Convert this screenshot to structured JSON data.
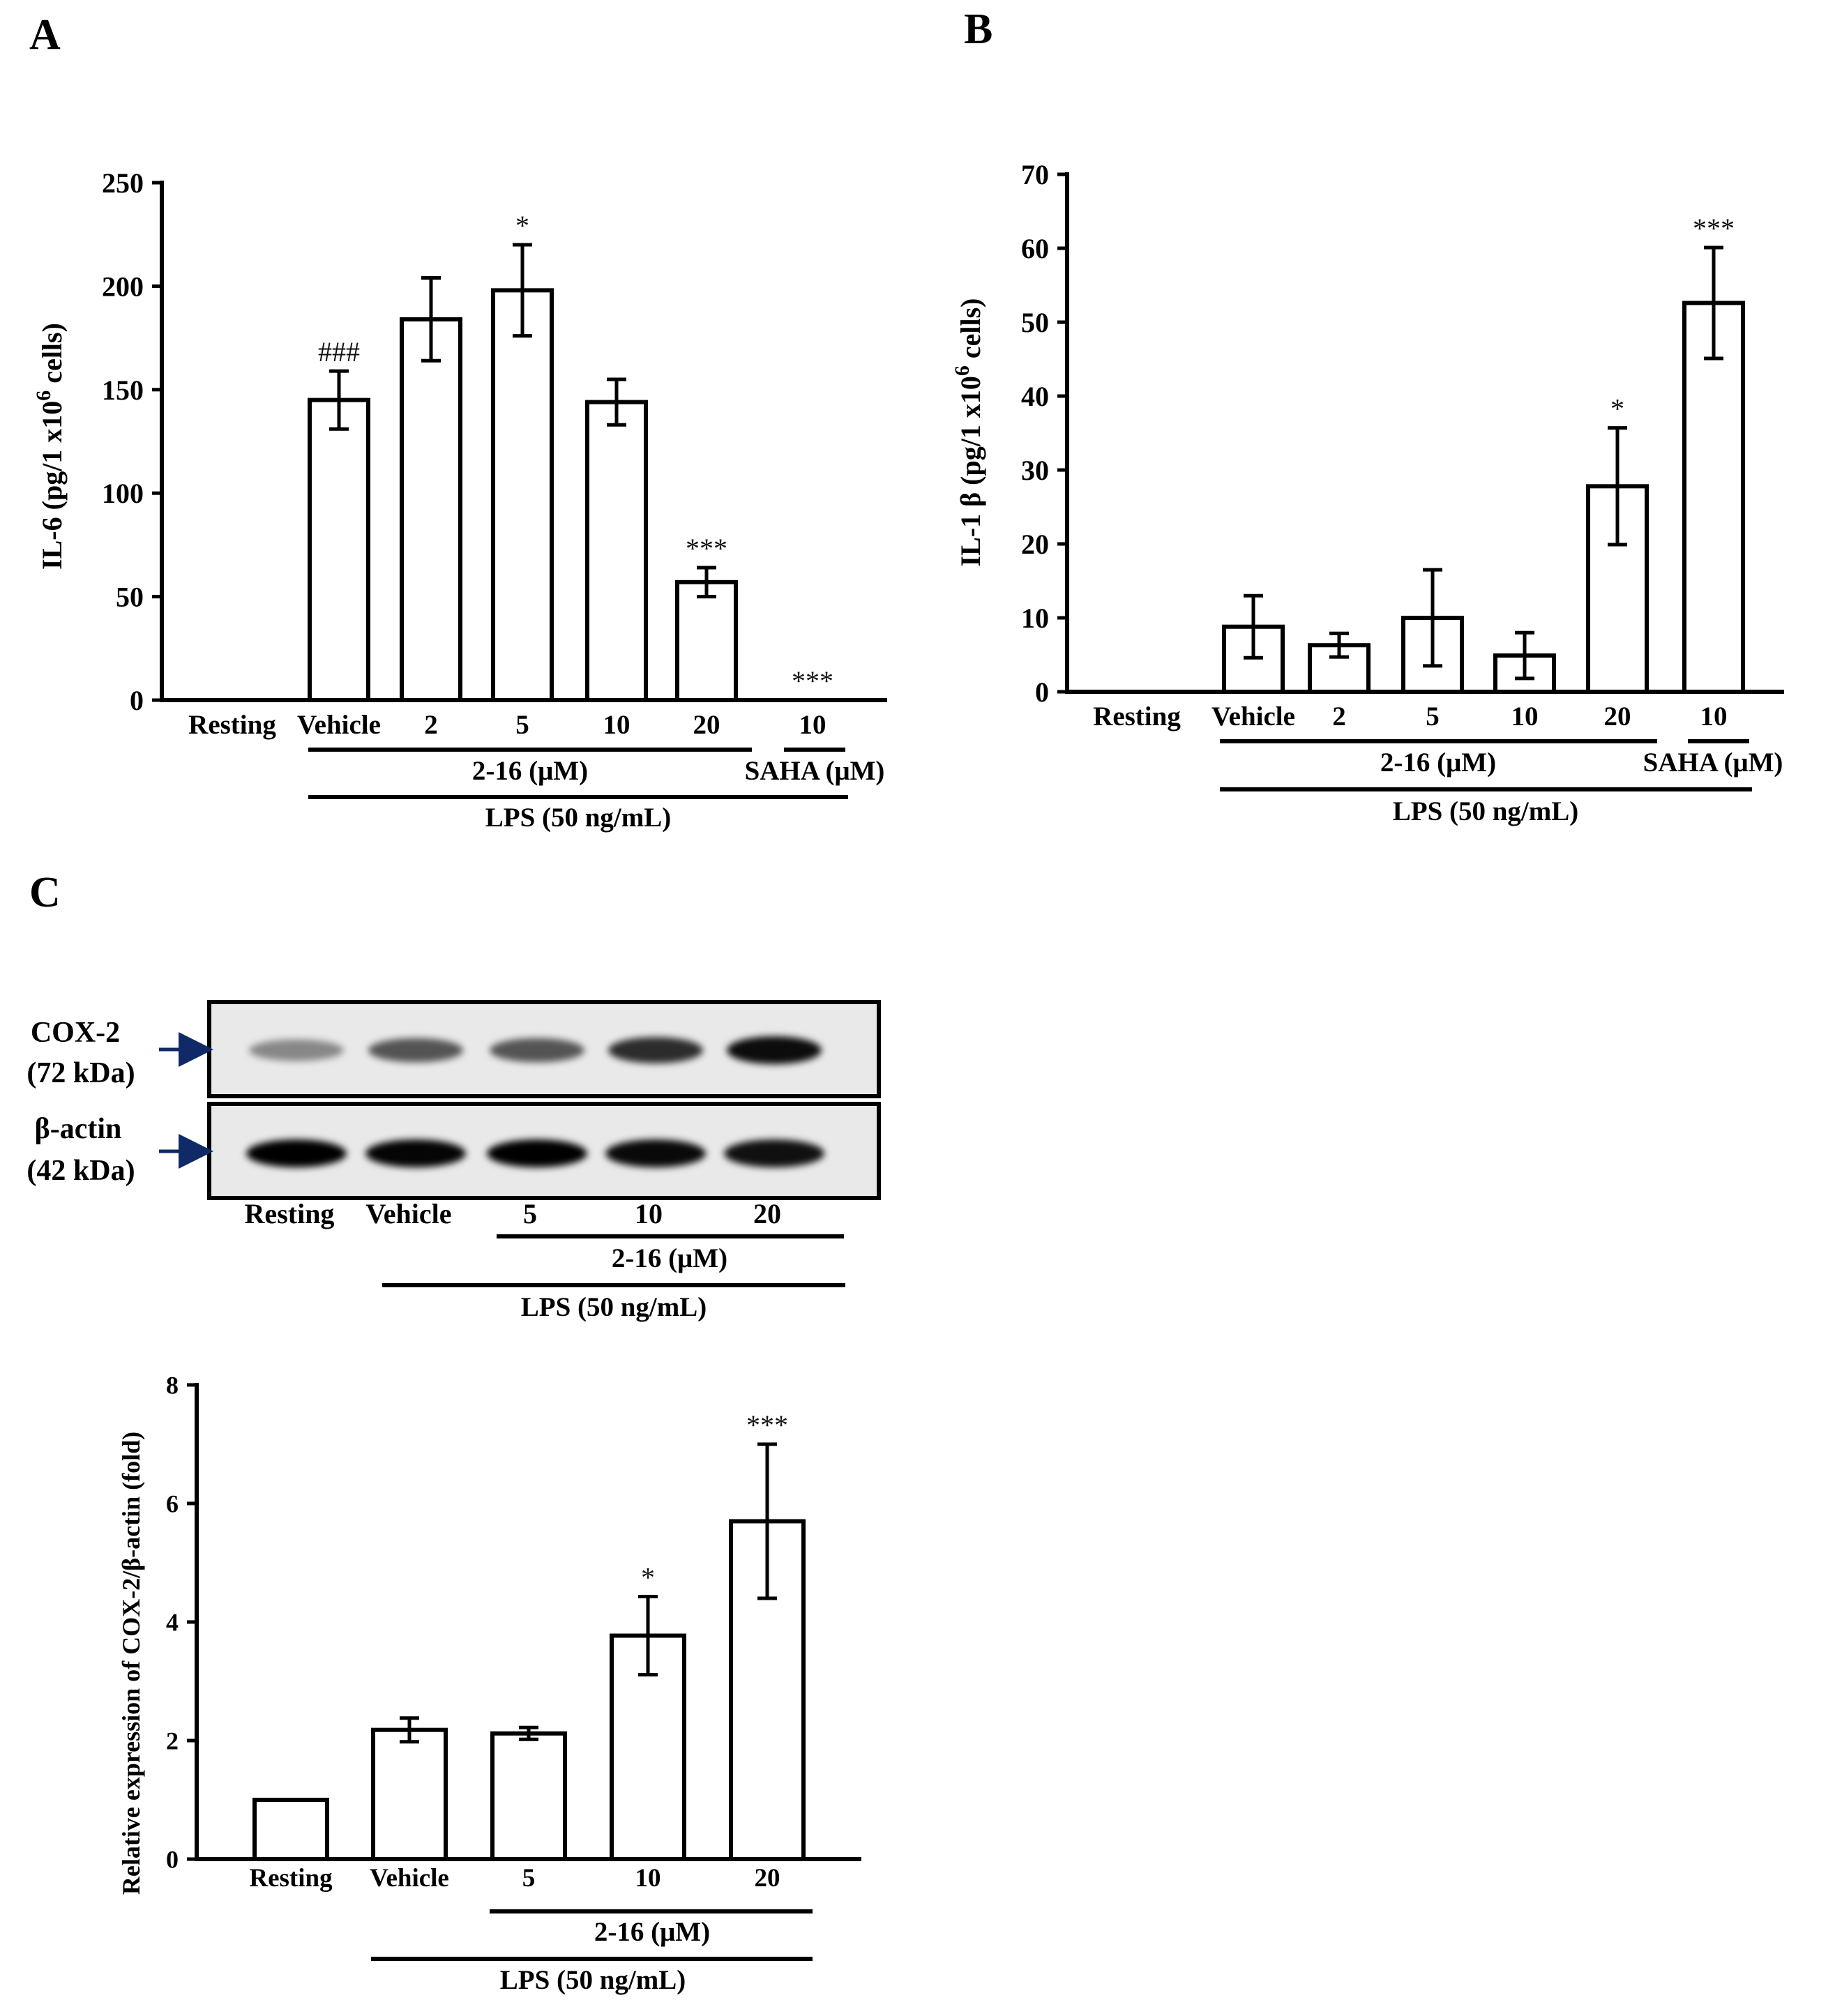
{
  "panels": {
    "A": {
      "letter": "A",
      "ylabel": "IL-6 (pg/1 x10",
      "ylabel_sup": "6",
      "ylabel_tail": " cells)",
      "treatment_label": "2-16 (μM)",
      "saha_label": "SAHA (μM)",
      "lps_label": "LPS (50 ng/mL)"
    },
    "B": {
      "letter": "B",
      "ylabel": "IL-1 β (pg/1 x10",
      "ylabel_sup": "6",
      "ylabel_tail": " cells)",
      "treatment_label": "2-16 (μM)",
      "saha_label": "SAHA (μM)",
      "lps_label": "LPS (50 ng/mL)"
    },
    "C": {
      "letter": "C"
    }
  },
  "blot": {
    "cox2_name": "COX-2",
    "cox2_kda": "(72 kDa)",
    "actin_name": "β-actin",
    "actin_kda": "(42 kDa)",
    "lanes": [
      "Resting",
      "Vehicle",
      "5",
      "10",
      "20"
    ],
    "cox2_intensity": [
      0.25,
      0.55,
      0.55,
      0.8,
      1.0
    ],
    "actin_intensity": [
      1.0,
      0.95,
      1.0,
      0.9,
      0.85
    ],
    "treatment_label": "2-16 (μM)",
    "lps_label": "LPS (50 ng/mL)"
  },
  "chartC_text": {
    "ylabel": "Relative expression of COX-2/β-actin (fold)",
    "treatment_label": "2-16 (μM)",
    "lps_label": "LPS (50 ng/mL)"
  },
  "chart_data": [
    {
      "type": "bar",
      "panel": "A",
      "categories": [
        "Resting",
        "Vehicle",
        "2",
        "5",
        "10",
        "20",
        "10"
      ],
      "values": [
        0,
        145,
        184,
        198,
        144,
        57,
        0
      ],
      "errors": [
        0,
        14,
        20,
        22,
        11,
        7,
        0
      ],
      "annotations": [
        "",
        "###",
        "",
        "*",
        "",
        "***",
        "***"
      ],
      "ylabel": "IL-6 (pg/1 x10^6 cells)",
      "ylim": [
        0,
        250
      ],
      "yticks": [
        0,
        50,
        100,
        150,
        200,
        250
      ]
    },
    {
      "type": "bar",
      "panel": "B",
      "categories": [
        "Resting",
        "Vehicle",
        "2",
        "5",
        "10",
        "20",
        "10"
      ],
      "values": [
        0,
        8.8,
        6.3,
        10,
        4.9,
        27.8,
        52.6
      ],
      "errors": [
        0,
        4.2,
        1.6,
        6.5,
        3.1,
        7.9,
        7.5
      ],
      "annotations": [
        "",
        "",
        "",
        "",
        "",
        "*",
        "***"
      ],
      "ylabel": "IL-1 β (pg/1 x10^6 cells)",
      "ylim": [
        0,
        70
      ],
      "yticks": [
        0,
        10,
        20,
        30,
        40,
        50,
        60,
        70
      ]
    },
    {
      "type": "bar",
      "panel": "C",
      "categories": [
        "Resting",
        "Vehicle",
        "5",
        "10",
        "20"
      ],
      "values": [
        1.0,
        2.18,
        2.12,
        3.77,
        5.7
      ],
      "errors": [
        0,
        0.2,
        0.1,
        0.66,
        1.3
      ],
      "annotations": [
        "",
        "",
        "",
        "*",
        "***"
      ],
      "ylabel": "Relative expression of COX-2/β-actin (fold)",
      "ylim": [
        0,
        8
      ],
      "yticks": [
        0,
        2,
        4,
        6,
        8
      ]
    }
  ]
}
